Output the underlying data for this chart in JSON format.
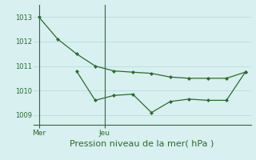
{
  "line1_x": [
    0,
    1,
    2,
    3,
    4,
    5,
    6,
    7,
    8,
    9,
    10,
    11
  ],
  "line1_y": [
    1013.0,
    1012.1,
    1011.5,
    1011.0,
    1010.8,
    1010.75,
    1010.7,
    1010.55,
    1010.5,
    1010.5,
    1010.5,
    1010.75
  ],
  "line2_x": [
    2,
    3,
    4,
    5,
    6,
    7,
    8,
    9,
    10,
    11
  ],
  "line2_y": [
    1010.8,
    1009.6,
    1009.8,
    1009.85,
    1009.1,
    1009.55,
    1009.65,
    1009.6,
    1009.6,
    1010.75
  ],
  "line_color": "#2d6a2d",
  "bg_color": "#d8f0f0",
  "grid_color": "#c0dede",
  "yticks": [
    1009,
    1010,
    1011,
    1012,
    1013
  ],
  "ylim": [
    1008.6,
    1013.5
  ],
  "xlim": [
    -0.3,
    11.3
  ],
  "xlabel": "Pression niveau de la mer( hPa )",
  "xlabel_fontsize": 8,
  "xtick_labels": [
    "Mer",
    "Jeu"
  ],
  "xtick_positions": [
    0,
    3.5
  ],
  "vline_positions": [
    0,
    3.5
  ],
  "figsize": [
    3.2,
    2.0
  ],
  "dpi": 100
}
